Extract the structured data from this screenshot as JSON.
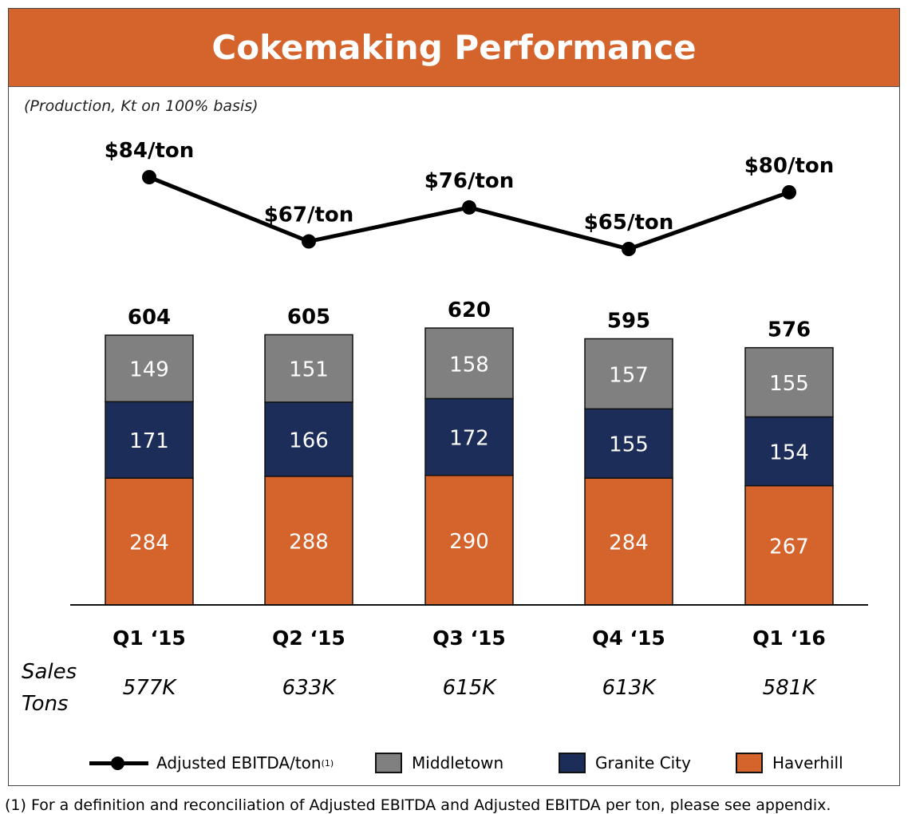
{
  "header": {
    "title": "Cokemaking Performance"
  },
  "subtitle": "(Production, Kt on 100% basis)",
  "chart_data": {
    "type": "bar",
    "stacked": true,
    "categories": [
      "Q1 ‘15",
      "Q2 ‘15",
      "Q3 ‘15",
      "Q4 ‘15",
      "Q1 ‘16"
    ],
    "series": [
      {
        "name": "Haverhill",
        "values": [
          284,
          288,
          290,
          284,
          267
        ],
        "color": "#d4632c"
      },
      {
        "name": "Granite City",
        "values": [
          171,
          166,
          172,
          155,
          154
        ],
        "color": "#1c2d59"
      },
      {
        "name": "Middletown",
        "values": [
          149,
          151,
          158,
          157,
          155
        ],
        "color": "#808080"
      }
    ],
    "totals": [
      604,
      605,
      620,
      595,
      576
    ],
    "line": {
      "name": "Adjusted EBITDA/ton",
      "name_superscript": "(1)",
      "values": [
        84,
        67,
        76,
        65,
        80
      ],
      "labels": [
        "$84/ton",
        "$67/ton",
        "$76/ton",
        "$65/ton",
        "$80/ton"
      ],
      "color": "#000000"
    },
    "sales_label": "Sales Tons",
    "sales_tons": [
      "577K",
      "633K",
      "615K",
      "613K",
      "581K"
    ],
    "legend_position": "bottom",
    "grid": false
  },
  "legend": {
    "line_label": "Adjusted EBITDA/ton",
    "line_sup": "(1)",
    "middletown": "Middletown",
    "granite_city": "Granite City",
    "haverhill": "Haverhill"
  },
  "footnote": "(1)   For a definition and reconciliation of Adjusted EBITDA and Adjusted EBITDA per ton, please see appendix."
}
